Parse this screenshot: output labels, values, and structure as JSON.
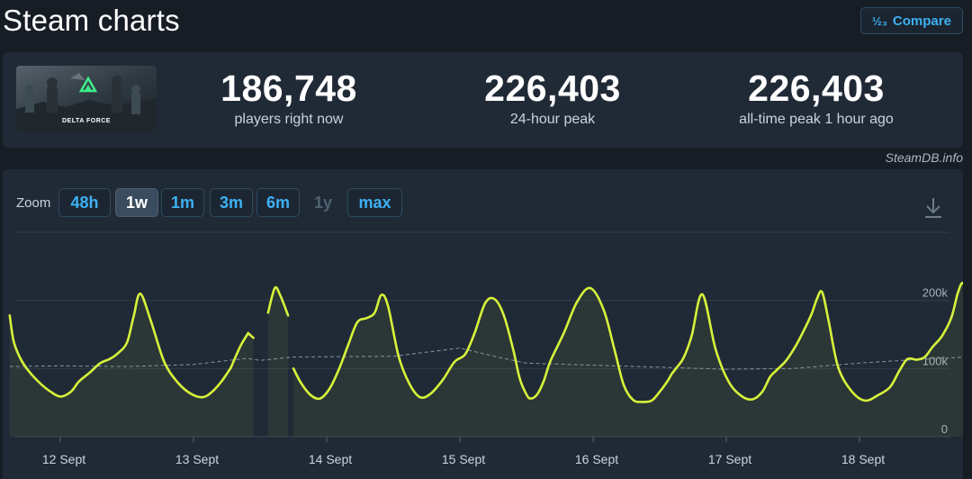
{
  "header": {
    "title": "Steam charts",
    "compare_label": "Compare",
    "compare_icon": "½₃"
  },
  "game": {
    "thumbnail_text": "DELTA FORCE"
  },
  "stats": [
    {
      "value": "186,748",
      "label": "players right now"
    },
    {
      "value": "226,403",
      "label": "24-hour peak"
    },
    {
      "value": "226,403",
      "label": "all-time peak 1 hour ago"
    }
  ],
  "credit": "SteamDB.info",
  "zoom": {
    "label": "Zoom",
    "options": [
      {
        "label": "48h",
        "state": "normal"
      },
      {
        "label": "1w",
        "state": "active"
      },
      {
        "label": "1m",
        "state": "normal"
      },
      {
        "label": "3m",
        "state": "normal"
      },
      {
        "label": "6m",
        "state": "normal"
      },
      {
        "label": "1y",
        "state": "disabled"
      },
      {
        "label": "max",
        "state": "normal"
      }
    ]
  },
  "chart_data": {
    "type": "line",
    "title": "",
    "xlabel": "",
    "ylabel": "",
    "ylim": [
      0,
      300000
    ],
    "x_tick_labels": [
      "12 Sept",
      "13 Sept",
      "14 Sept",
      "15 Sept",
      "16 Sept",
      "17 Sept",
      "18 Sept"
    ],
    "y_tick_labels": [
      "0",
      "100k",
      "200k"
    ],
    "y_ticks": [
      0,
      100000,
      200000,
      300000
    ],
    "grid": true,
    "legend": "none",
    "line_color": "#d6f33a",
    "average_color": "#8896a3",
    "series": [
      {
        "name": "",
        "style": "solid",
        "segments": [
          {
            "x": [
              -0.38,
              -0.35,
              -0.3,
              -0.24,
              -0.16,
              -0.08,
              0.0,
              0.08,
              0.14,
              0.22,
              0.3,
              0.37,
              0.43,
              0.5,
              0.55,
              0.6,
              0.68,
              0.78,
              0.88,
              0.98,
              1.07,
              1.14,
              1.21,
              1.28
            ],
            "y": [
              178000,
              140000,
              115000,
              97000,
              80000,
              67000,
              59000,
              66000,
              81000,
              94000,
              108000,
              114000,
              122000,
              138000,
              176000,
              210000,
              170000,
              110000,
              80000,
              63000,
              58000,
              66000,
              81000,
              101000
            ]
          },
          {
            "x": [
              1.28,
              1.35,
              1.41
            ],
            "y": [
              101000,
              132000,
              152000
            ]
          },
          {
            "x": [
              1.41,
              1.45
            ],
            "y": [
              152000,
              145000
            ]
          },
          {
            "x": [
              1.56,
              1.61,
              1.65,
              1.71
            ],
            "y": [
              182000,
              218000,
              208000,
              178000
            ]
          },
          {
            "x": [
              1.75,
              1.81,
              1.88,
              1.95,
              2.02,
              2.09,
              2.16,
              2.23,
              2.3,
              2.36,
              2.41,
              2.46,
              2.54,
              2.62,
              2.7,
              2.78,
              2.87,
              2.96,
              3.04,
              3.11,
              3.19,
              3.26,
              3.33,
              3.4,
              3.45,
              3.5,
              3.53,
              3.58,
              3.63,
              3.68,
              3.78,
              3.88,
              3.98,
              4.08,
              4.16,
              4.23,
              4.3,
              4.37,
              4.44,
              4.5,
              4.56,
              4.59,
              4.63,
              4.68,
              4.74,
              4.82,
              4.92,
              5.02,
              5.12,
              5.2,
              5.27,
              5.33,
              5.38,
              5.45,
              5.52,
              5.58,
              5.64,
              5.68,
              5.72,
              5.77,
              5.84,
              5.94,
              6.04,
              6.14,
              6.23,
              6.3,
              6.36,
              6.43,
              6.49,
              6.55,
              6.62,
              6.69,
              6.74,
              6.78,
              6.82
            ],
            "y": [
              100000,
              78000,
              61000,
              56000,
              70000,
              98000,
              134000,
              168000,
              174000,
              182000,
              208000,
              192000,
              118000,
              78000,
              58000,
              63000,
              83000,
              110000,
              121000,
              152000,
              196000,
              202000,
              178000,
              128000,
              85000,
              62000,
              56000,
              62000,
              82000,
              111000,
              152000,
              198000,
              218000,
              186000,
              128000,
              76000,
              54000,
              51000,
              53000,
              66000,
              82000,
              92000,
              102000,
              116000,
              148000,
              209000,
              128000,
              80000,
              59000,
              55000,
              66000,
              88000,
              98000,
              112000,
              133000,
              155000,
              180000,
              202000,
              212000,
              168000,
              102000,
              67000,
              53000,
              61000,
              73000,
              97000,
              114000,
              113000,
              117000,
              132000,
              148000,
              175000,
              212000,
              225000,
              190000
            ]
          }
        ]
      },
      {
        "name": "",
        "style": "dashed",
        "x": [
          -0.38,
          0.0,
          0.5,
          1.0,
          1.4,
          1.5,
          1.75,
          2.5,
          3.0,
          3.3,
          3.5,
          4.0,
          4.5,
          5.0,
          5.5,
          6.0,
          6.5,
          6.82
        ],
        "y": [
          103000,
          104000,
          103000,
          106000,
          115000,
          112000,
          117000,
          118000,
          130000,
          116000,
          108000,
          105000,
          102000,
          99000,
          100000,
          108000,
          114000,
          117000
        ]
      }
    ]
  }
}
